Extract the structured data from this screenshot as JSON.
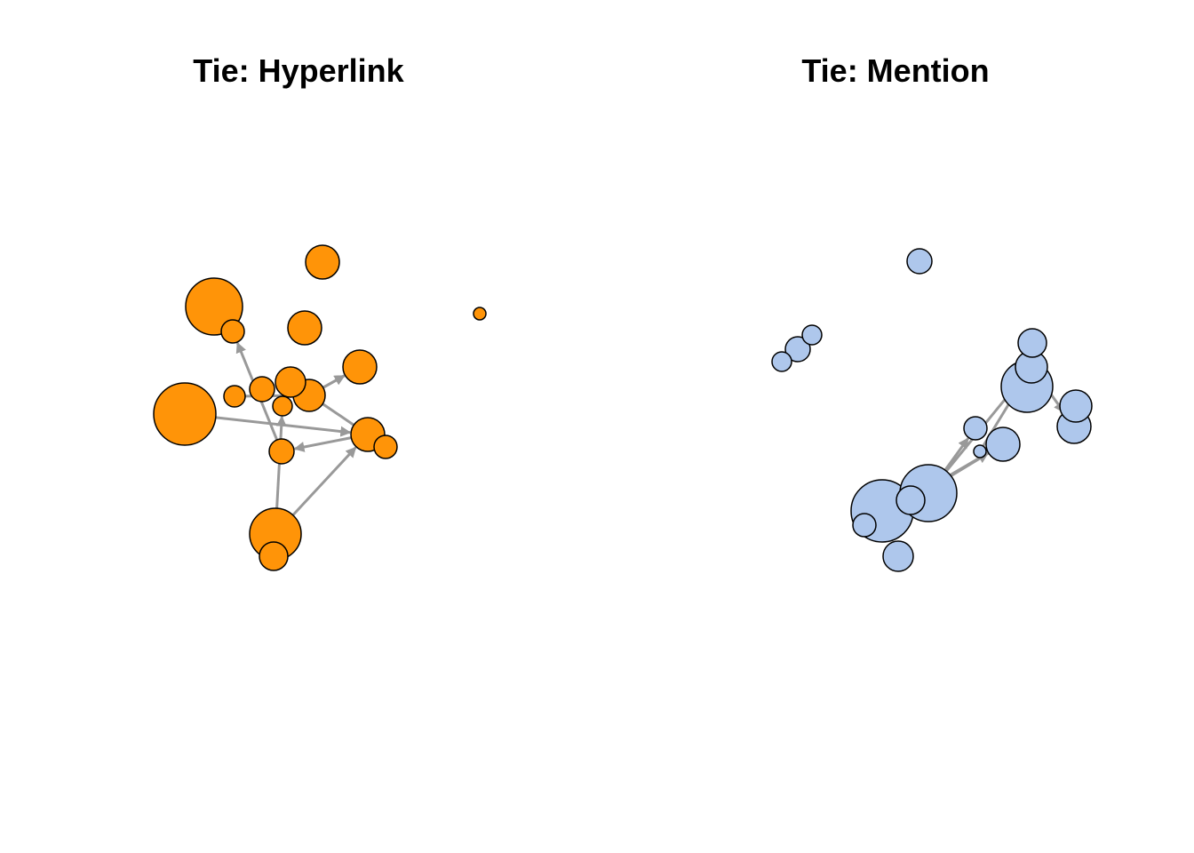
{
  "colors": {
    "edge": "#999999",
    "node_stroke": "#000000",
    "hyperlink_node": "#ff9408",
    "mention_node": "#aec7ec"
  },
  "panels": [
    {
      "id": "hyperlink",
      "title": "Tie: Hyperlink",
      "node_color": "#ff9408",
      "nodes": [
        {
          "id": "h1"
        },
        {
          "id": "h2"
        },
        {
          "id": "h3"
        },
        {
          "id": "h4"
        },
        {
          "id": "h5"
        },
        {
          "id": "h6"
        },
        {
          "id": "h7"
        },
        {
          "id": "h8"
        },
        {
          "id": "h9"
        },
        {
          "id": "h10"
        },
        {
          "id": "h11"
        },
        {
          "id": "h12"
        },
        {
          "id": "h13"
        },
        {
          "id": "h14"
        },
        {
          "id": "h15"
        },
        {
          "id": "h16"
        },
        {
          "id": "h17"
        }
      ],
      "edges": [
        {
          "from": "h12",
          "to": "h2"
        },
        {
          "from": "h10",
          "to": "h5"
        },
        {
          "from": "h13",
          "to": "h9"
        },
        {
          "from": "h7",
          "to": "h10"
        },
        {
          "from": "h10",
          "to": "h5"
        },
        {
          "from": "h13",
          "to": "h12"
        },
        {
          "from": "h6",
          "to": "h13"
        },
        {
          "from": "h13",
          "to": "h14"
        },
        {
          "from": "h15",
          "to": "h16"
        },
        {
          "from": "h15",
          "to": "h13"
        },
        {
          "from": "h15",
          "to": "h11"
        }
      ]
    },
    {
      "id": "mention",
      "title": "Tie: Mention",
      "node_color": "#aec7ec",
      "nodes": [
        {
          "id": "m1"
        },
        {
          "id": "m2"
        },
        {
          "id": "m3"
        },
        {
          "id": "m4"
        },
        {
          "id": "m5"
        },
        {
          "id": "m6"
        },
        {
          "id": "m7"
        },
        {
          "id": "m8"
        },
        {
          "id": "m9"
        },
        {
          "id": "m10"
        },
        {
          "id": "m11"
        },
        {
          "id": "m12"
        },
        {
          "id": "m13"
        },
        {
          "id": "m14"
        },
        {
          "id": "m15"
        },
        {
          "id": "m16"
        },
        {
          "id": "m17"
        }
      ],
      "edges": [
        {
          "from": "m14",
          "to": "m11"
        },
        {
          "from": "m11",
          "to": "m16"
        },
        {
          "from": "m11",
          "to": "m14"
        },
        {
          "from": "m13",
          "to": "m7"
        },
        {
          "from": "m12",
          "to": "m7"
        },
        {
          "from": "m13",
          "to": "m10"
        },
        {
          "from": "m7",
          "to": "m9"
        },
        {
          "from": "m14",
          "to": "m16"
        },
        {
          "from": "m7",
          "to": "m6"
        }
      ]
    }
  ]
}
